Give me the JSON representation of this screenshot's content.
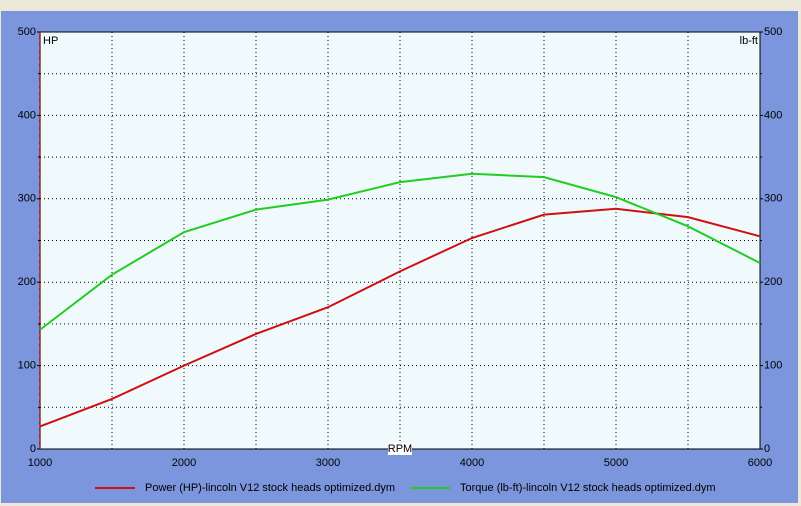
{
  "chart_data": {
    "type": "line",
    "x_label": "RPM",
    "y_label": "HP",
    "y2_label": "lb-ft",
    "x": [
      1000,
      1500,
      2000,
      2500,
      3000,
      3500,
      4000,
      4500,
      5000,
      5500,
      6000
    ],
    "series": [
      {
        "name": "Power (HP)-lincoln V12 stock heads optimized.dym",
        "color": "#d01010",
        "values": [
          27,
          60,
          100,
          138,
          170,
          213,
          253,
          281,
          288,
          278,
          255
        ]
      },
      {
        "name": "Torque (lb-ft)-lincoln V12 stock heads optimized.dym",
        "color": "#22cc22",
        "axis": "y2",
        "values": [
          143,
          209,
          260,
          287,
          299,
          320,
          330,
          326,
          302,
          267,
          223
        ]
      }
    ],
    "xlim": [
      1000,
      6000
    ],
    "xticks": [
      1000,
      2000,
      3000,
      4000,
      5000,
      6000
    ],
    "ylim": [
      0,
      500
    ],
    "yticks": [
      0,
      100,
      200,
      300,
      400,
      500
    ],
    "y2lim": [
      0,
      500
    ],
    "y2ticks": [
      0,
      100,
      200,
      300,
      400,
      500
    ],
    "grid": true
  }
}
